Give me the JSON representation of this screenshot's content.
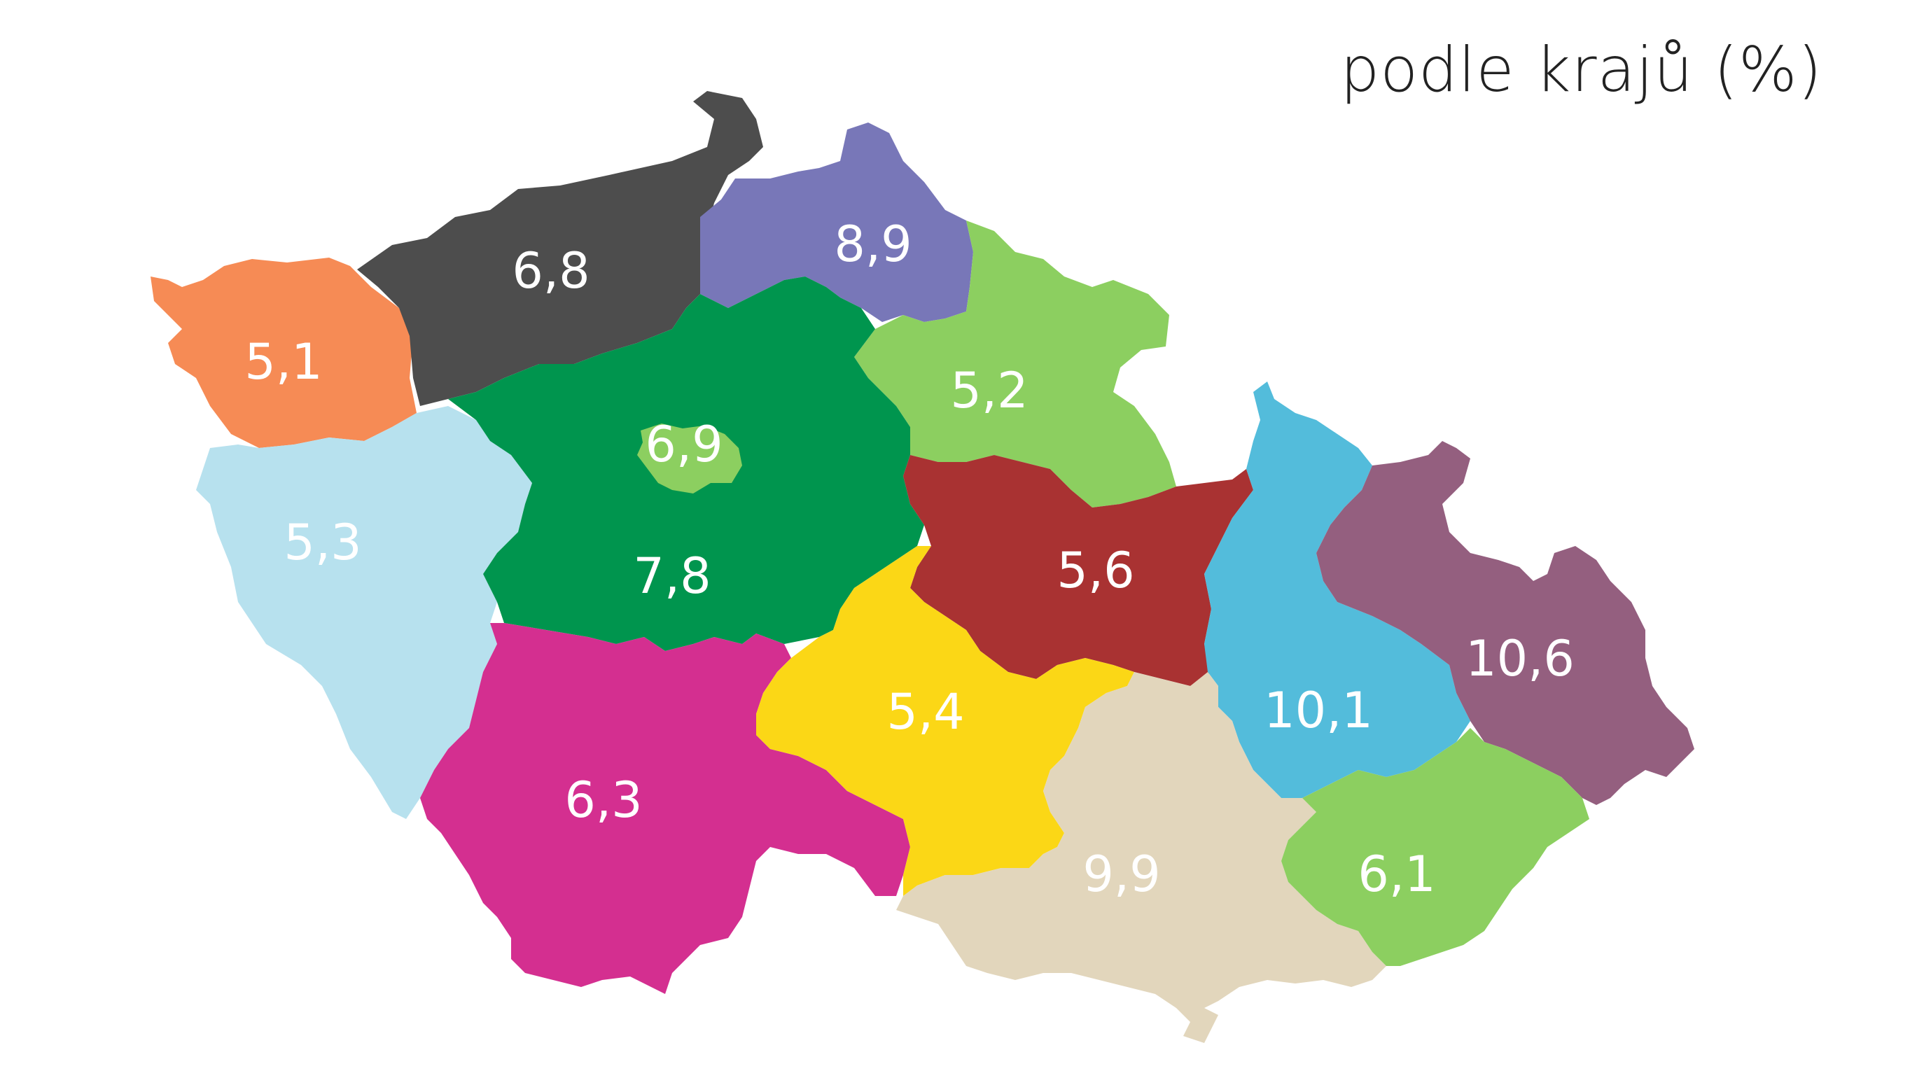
{
  "title": "podle krajů (%)",
  "regions": [
    {
      "id": "karlovarsky",
      "label": "5,1",
      "color": "#F68B55"
    },
    {
      "id": "ustecky",
      "label": "6,8",
      "color": "#4D4D4D"
    },
    {
      "id": "liberecky",
      "label": "8,9",
      "color": "#7877B8"
    },
    {
      "id": "kralovehradecky",
      "label": "5,2",
      "color": "#8CCF60"
    },
    {
      "id": "plzensky",
      "label": "5,3",
      "color": "#B7E1EE"
    },
    {
      "id": "stredocesky",
      "label": "7,8",
      "color": "#00954E"
    },
    {
      "id": "praha",
      "label": "6,9",
      "color": "#8CCF60"
    },
    {
      "id": "pardubicky",
      "label": "5,6",
      "color": "#A93232"
    },
    {
      "id": "olomoucky",
      "label": "10,1",
      "color": "#53BCDB"
    },
    {
      "id": "moravskoslezsky",
      "label": "10,6",
      "color": "#945F7F"
    },
    {
      "id": "jihocesky",
      "label": "6,3",
      "color": "#D42F90"
    },
    {
      "id": "vysocina",
      "label": "5,4",
      "color": "#FBD716"
    },
    {
      "id": "jihomoravsky",
      "label": "9,9",
      "color": "#E2D6BC"
    },
    {
      "id": "zlinsky",
      "label": "6,1",
      "color": "#8CCF60"
    }
  ]
}
